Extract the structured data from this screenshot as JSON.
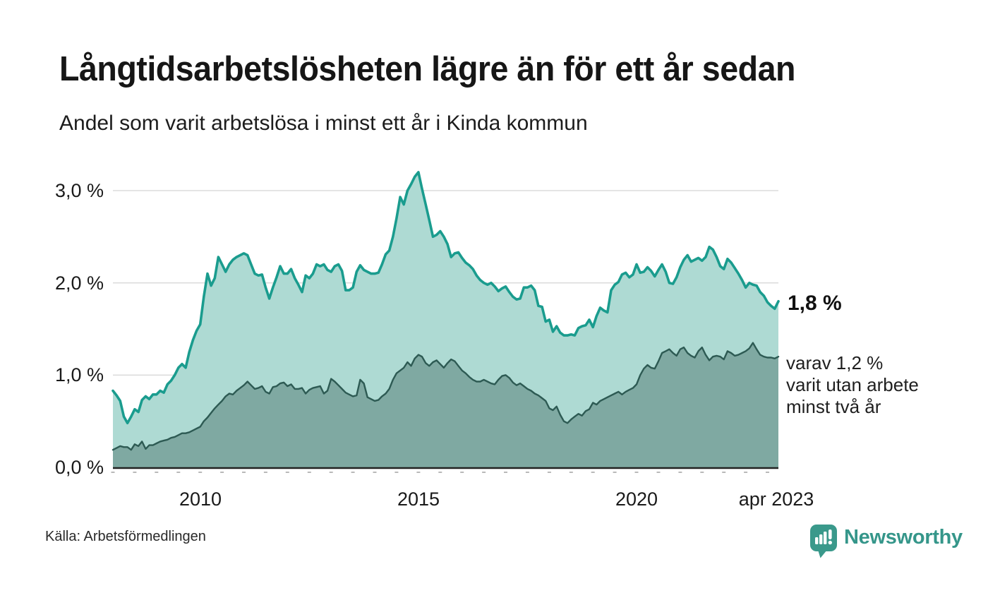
{
  "header": {
    "title": "Långtidsarbetslösheten lägre än för ett år sedan",
    "subtitle": "Andel som varit arbetslösa i minst ett år i Kinda kommun"
  },
  "annotations": {
    "latest_total": "1,8 %",
    "sub_line1": "varav 1,2 %",
    "sub_line2": "varit utan arbete",
    "sub_line3": "minst två år"
  },
  "footer": {
    "source": "Källa: Arbetsförmedlingen",
    "brand": "Newsworthy"
  },
  "colors": {
    "total_line": "#1a9c8e",
    "total_fill": "#aedad3",
    "two_year_line": "#2d5a53",
    "two_year_fill": "#7fa9a2",
    "grid": "#dcdcdc",
    "axis": "#222222",
    "tick": "#b9b9b9",
    "brand_teal": "#3a998b"
  },
  "chart_data": {
    "type": "area",
    "title": "Långtidsarbetslösheten lägre än för ett år sedan",
    "subtitle": "Andel som varit arbetslösa i minst ett år i Kinda kommun",
    "frequency": "monthly",
    "x_start": "2008-01",
    "x_end": "2023-04",
    "ylim": [
      0,
      3.3
    ],
    "grid_values": [
      1.0,
      2.0,
      3.0
    ],
    "y_tick_labels": {
      "y0": "0,0 %",
      "y1": "1,0 %",
      "y2": "2,0 %",
      "y3": "3,0 %"
    },
    "x_tick_labels": {
      "t2010": "2010",
      "t2015": "2015",
      "t2020": "2020",
      "t2023": "apr 2023"
    },
    "x_tick_months": [
      24,
      84,
      144,
      183
    ],
    "end_values": {
      "total_pct": 1.8,
      "two_year_pct": 1.2
    },
    "series": [
      {
        "name": "Andel arbetslösa minst ett år",
        "line_color": "#1a9c8e",
        "fill_color": "#aedad3",
        "values": [
          0.83,
          0.78,
          0.72,
          0.55,
          0.48,
          0.55,
          0.63,
          0.6,
          0.73,
          0.77,
          0.74,
          0.79,
          0.79,
          0.83,
          0.81,
          0.9,
          0.94,
          1.0,
          1.08,
          1.12,
          1.08,
          1.25,
          1.38,
          1.48,
          1.55,
          1.85,
          2.1,
          1.97,
          2.05,
          2.28,
          2.2,
          2.12,
          2.2,
          2.25,
          2.28,
          2.3,
          2.32,
          2.3,
          2.2,
          2.1,
          2.08,
          2.09,
          1.95,
          1.83,
          1.95,
          2.06,
          2.18,
          2.1,
          2.1,
          2.15,
          2.05,
          1.98,
          1.9,
          2.08,
          2.05,
          2.1,
          2.2,
          2.18,
          2.2,
          2.14,
          2.12,
          2.18,
          2.2,
          2.13,
          1.92,
          1.92,
          1.95,
          2.12,
          2.19,
          2.14,
          2.12,
          2.1,
          2.1,
          2.11,
          2.2,
          2.31,
          2.35,
          2.5,
          2.7,
          2.93,
          2.85,
          3.0,
          3.07,
          3.15,
          3.2,
          3.02,
          2.85,
          2.68,
          2.5,
          2.52,
          2.56,
          2.5,
          2.42,
          2.28,
          2.32,
          2.33,
          2.27,
          2.22,
          2.19,
          2.15,
          2.08,
          2.03,
          2.0,
          1.98,
          2.0,
          1.96,
          1.91,
          1.94,
          1.96,
          1.9,
          1.85,
          1.82,
          1.83,
          1.95,
          1.95,
          1.97,
          1.92,
          1.75,
          1.74,
          1.58,
          1.6,
          1.47,
          1.53,
          1.46,
          1.43,
          1.43,
          1.44,
          1.43,
          1.51,
          1.53,
          1.54,
          1.6,
          1.52,
          1.64,
          1.73,
          1.7,
          1.68,
          1.92,
          1.98,
          2.01,
          2.09,
          2.11,
          2.06,
          2.09,
          2.2,
          2.11,
          2.12,
          2.17,
          2.13,
          2.07,
          2.14,
          2.2,
          2.12,
          2.0,
          1.99,
          2.06,
          2.17,
          2.25,
          2.3,
          2.23,
          2.25,
          2.27,
          2.24,
          2.28,
          2.39,
          2.36,
          2.28,
          2.18,
          2.15,
          2.26,
          2.22,
          2.16,
          2.1,
          2.03,
          1.95,
          2.0,
          1.98,
          1.97,
          1.9,
          1.86,
          1.79,
          1.75,
          1.72,
          1.8
        ]
      },
      {
        "name": "varav utan arbete minst två år",
        "line_color": "#2d5a53",
        "fill_color": "#7fa9a2",
        "values": [
          0.19,
          0.21,
          0.23,
          0.22,
          0.22,
          0.19,
          0.25,
          0.23,
          0.28,
          0.2,
          0.24,
          0.24,
          0.26,
          0.28,
          0.29,
          0.3,
          0.32,
          0.33,
          0.35,
          0.37,
          0.37,
          0.38,
          0.4,
          0.42,
          0.44,
          0.5,
          0.54,
          0.59,
          0.64,
          0.68,
          0.72,
          0.77,
          0.8,
          0.79,
          0.83,
          0.86,
          0.89,
          0.93,
          0.89,
          0.85,
          0.86,
          0.88,
          0.82,
          0.8,
          0.87,
          0.88,
          0.91,
          0.92,
          0.88,
          0.9,
          0.85,
          0.85,
          0.86,
          0.8,
          0.84,
          0.86,
          0.87,
          0.88,
          0.8,
          0.83,
          0.96,
          0.93,
          0.89,
          0.85,
          0.81,
          0.79,
          0.77,
          0.78,
          0.95,
          0.91,
          0.76,
          0.74,
          0.72,
          0.73,
          0.77,
          0.8,
          0.85,
          0.95,
          1.02,
          1.05,
          1.08,
          1.14,
          1.1,
          1.18,
          1.22,
          1.2,
          1.13,
          1.1,
          1.14,
          1.16,
          1.12,
          1.08,
          1.13,
          1.17,
          1.15,
          1.1,
          1.05,
          1.02,
          0.98,
          0.95,
          0.93,
          0.93,
          0.95,
          0.93,
          0.91,
          0.9,
          0.95,
          0.99,
          1.0,
          0.97,
          0.92,
          0.89,
          0.91,
          0.88,
          0.85,
          0.83,
          0.8,
          0.78,
          0.75,
          0.72,
          0.64,
          0.62,
          0.66,
          0.57,
          0.5,
          0.48,
          0.52,
          0.55,
          0.58,
          0.56,
          0.61,
          0.63,
          0.7,
          0.68,
          0.72,
          0.74,
          0.76,
          0.78,
          0.8,
          0.82,
          0.79,
          0.82,
          0.84,
          0.86,
          0.9,
          1.0,
          1.07,
          1.11,
          1.08,
          1.07,
          1.15,
          1.24,
          1.26,
          1.28,
          1.24,
          1.21,
          1.28,
          1.3,
          1.24,
          1.21,
          1.19,
          1.26,
          1.3,
          1.22,
          1.16,
          1.2,
          1.21,
          1.2,
          1.17,
          1.26,
          1.24,
          1.21,
          1.22,
          1.24,
          1.26,
          1.29,
          1.35,
          1.28,
          1.22,
          1.2,
          1.19,
          1.19,
          1.18,
          1.2
        ]
      }
    ]
  }
}
